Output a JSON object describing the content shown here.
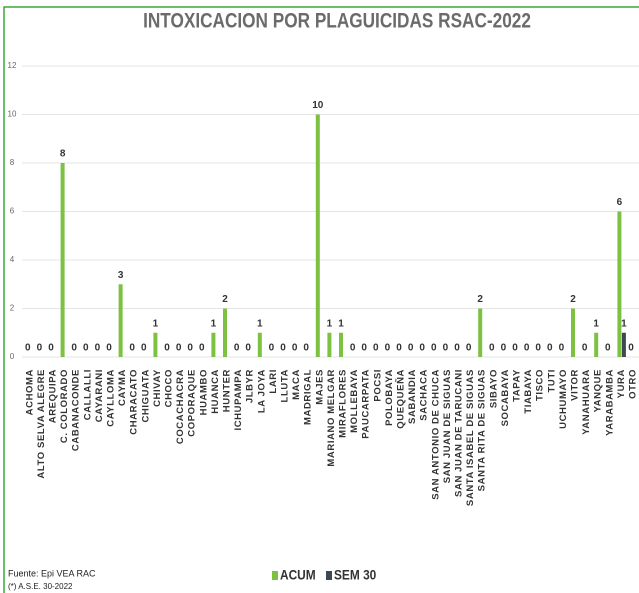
{
  "chart_data": {
    "type": "bar",
    "title": "INTOXICACION POR PLAGUICIDAS RSAC-2022",
    "source": "Fuente: Epi VEA RAC",
    "note": "(*) A.S.E. 30-2022",
    "categories": [
      "ACHOMA",
      "ALTO SELVA ALEGRE",
      "AREQUIPA",
      "C. COLORADO",
      "CABANACONDE",
      "CALLALLI",
      "CAYARANI",
      "CAYLLOMA",
      "CAYMA",
      "CHARACATO",
      "CHIGUATA",
      "CHIVAY",
      "CHOCO",
      "COCACHACRA",
      "COPORAQUE",
      "HUAMBO",
      "HUANCA",
      "HUNTER",
      "ICHUPAMPA",
      "JLBYR",
      "LA JOYA",
      "LARI",
      "LLUTA",
      "MACA",
      "MADRIGAL",
      "MAJES",
      "MARIANO MELGAR",
      "MIRAFLORES",
      "MOLLEBAYA",
      "PAUCARPATA",
      "POCSI",
      "POLOBAYA",
      "QUEQUEÑA",
      "SABANDIA",
      "SACHACA",
      "SAN ANTONIO DE CHUCA",
      "SAN JUAN DE SIGUAS",
      "SAN JUAN DE TARUCANI",
      "SANTA ISABEL DE SIGUAS",
      "SANTA RITA DE SIGUAS",
      "SIBAYO",
      "SOCABAYA",
      "TAPAY",
      "TIABAYA",
      "TISCO",
      "TUTI",
      "UCHUMAYO",
      "VITOR",
      "YANAHUARA",
      "YANQUE",
      "YARABAMBA",
      "YURA",
      "OTRO"
    ],
    "series": [
      {
        "name": "ACUM",
        "color": "#7cc142",
        "values": [
          0,
          0,
          0,
          8,
          0,
          0,
          0,
          0,
          3,
          0,
          0,
          1,
          0,
          0,
          0,
          0,
          1,
          2,
          0,
          0,
          1,
          0,
          0,
          0,
          0,
          10,
          1,
          1,
          0,
          0,
          0,
          0,
          0,
          0,
          0,
          0,
          0,
          0,
          0,
          2,
          0,
          0,
          0,
          0,
          0,
          0,
          0,
          2,
          0,
          1,
          0,
          6,
          0
        ]
      },
      {
        "name": "SEM 30",
        "color": "#3d4852",
        "values": [
          null,
          null,
          null,
          null,
          null,
          null,
          null,
          null,
          null,
          null,
          null,
          null,
          null,
          null,
          null,
          null,
          null,
          null,
          null,
          null,
          null,
          null,
          null,
          null,
          null,
          null,
          null,
          null,
          null,
          null,
          null,
          null,
          null,
          null,
          null,
          null,
          null,
          null,
          null,
          null,
          null,
          null,
          null,
          null,
          null,
          null,
          null,
          null,
          null,
          null,
          null,
          1,
          null
        ]
      }
    ],
    "ylim": [
      0,
      12
    ],
    "yticks": [
      0,
      2,
      4,
      6,
      8,
      10,
      12
    ],
    "grid": true
  }
}
